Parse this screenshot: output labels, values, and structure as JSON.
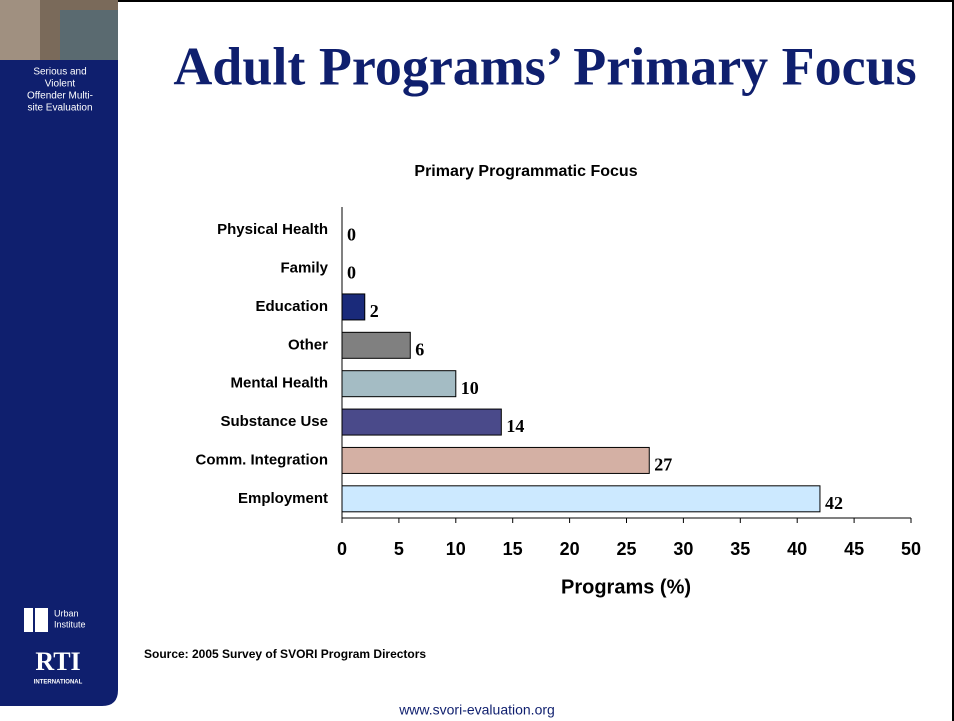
{
  "slide": {
    "title": "Adult Programs’ Primary Focus",
    "source": "Source: 2005 Survey of SVORI Program Directors",
    "footer": "www.svori-evaluation.org"
  },
  "sidebar": {
    "caption": [
      "Serious and",
      "Violent",
      "Offender Multi-",
      "site Evaluation"
    ],
    "urban_logo": [
      "Urban",
      "Institute"
    ],
    "rti_logo": [
      "RTI",
      "INTERNATIONAL"
    ]
  },
  "chart_data": {
    "type": "hbar",
    "title": "Primary Programmatic Focus",
    "categories": [
      "Physical Health",
      "Family",
      "Education",
      "Other",
      "Mental Health",
      "Substance Use",
      "Comm. Integration",
      "Employment"
    ],
    "values": [
      0,
      0,
      2,
      6,
      10,
      14,
      27,
      42
    ],
    "colors": [
      "#1a2a7a",
      "#1a2a7a",
      "#1a2a7a",
      "#808080",
      "#a4bcc4",
      "#4a4a8a",
      "#d4b0a4",
      "#cce9ff"
    ],
    "xlabel": "Programs (%)",
    "xlim": [
      0,
      50
    ],
    "xticks": [
      0,
      5,
      10,
      15,
      20,
      25,
      30,
      35,
      40,
      45,
      50
    ]
  }
}
